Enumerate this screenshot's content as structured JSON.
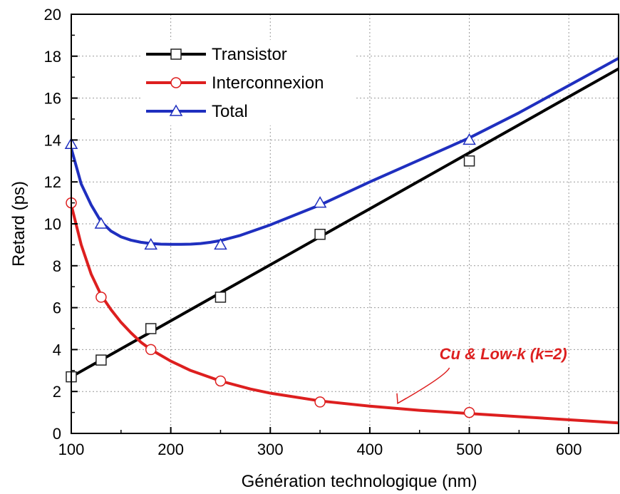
{
  "chart_data": {
    "type": "line",
    "title": "",
    "xlabel": "Génération technologique (nm)",
    "ylabel": "Retard (ps)",
    "xlim": [
      100,
      650
    ],
    "ylim": [
      0,
      20
    ],
    "xticks": [
      100,
      200,
      300,
      400,
      500,
      600
    ],
    "yticks": [
      0,
      2,
      4,
      6,
      8,
      10,
      12,
      14,
      16,
      18,
      20
    ],
    "grid": true,
    "legend_position": "top-left",
    "series": [
      {
        "name": "Transistor",
        "color": "#000000",
        "marker": "square",
        "points": {
          "x": [
            100,
            130,
            180,
            250,
            350,
            500
          ],
          "y": [
            2.7,
            3.5,
            5.0,
            6.5,
            9.5,
            13.0
          ]
        },
        "curve": {
          "x": [
            100,
            650
          ],
          "y": [
            2.7,
            17.4
          ]
        }
      },
      {
        "name": "Interconnexion",
        "color": "#dd1f1f",
        "marker": "circle",
        "points": {
          "x": [
            100,
            130,
            180,
            250,
            350,
            500
          ],
          "y": [
            11.0,
            6.5,
            4.0,
            2.5,
            1.5,
            1.0
          ]
        },
        "curve": {
          "x": [
            100,
            110,
            120,
            130,
            140,
            150,
            160,
            170,
            180,
            200,
            220,
            250,
            280,
            300,
            350,
            400,
            450,
            500,
            550,
            600,
            650
          ],
          "y": [
            10.9,
            9.0,
            7.6,
            6.6,
            5.9,
            5.3,
            4.8,
            4.35,
            4.0,
            3.45,
            3.0,
            2.5,
            2.12,
            1.92,
            1.55,
            1.3,
            1.1,
            0.95,
            0.8,
            0.65,
            0.5
          ]
        }
      },
      {
        "name": "Total",
        "color": "#1f2fbf",
        "marker": "triangle",
        "points": {
          "x": [
            100,
            130,
            180,
            250,
            350,
            500
          ],
          "y": [
            13.8,
            10.0,
            9.0,
            9.0,
            11.0,
            14.0
          ]
        },
        "curve": {
          "x": [
            100,
            110,
            120,
            130,
            140,
            150,
            160,
            170,
            180,
            190,
            200,
            210,
            220,
            230,
            240,
            250,
            270,
            300,
            350,
            400,
            450,
            500,
            550,
            600,
            650
          ],
          "y": [
            13.6,
            11.9,
            10.9,
            10.1,
            9.65,
            9.38,
            9.22,
            9.12,
            9.06,
            9.03,
            9.02,
            9.02,
            9.03,
            9.06,
            9.12,
            9.2,
            9.45,
            9.95,
            10.9,
            12.0,
            13.05,
            14.1,
            15.3,
            16.6,
            17.9
          ]
        }
      }
    ],
    "annotations": [
      {
        "text": "Cu & Low-k (k=2)",
        "color": "#dd1f1f",
        "x": 470,
        "y": 3.2,
        "arrow_to": {
          "x": 428,
          "y": 1.3
        }
      }
    ]
  }
}
